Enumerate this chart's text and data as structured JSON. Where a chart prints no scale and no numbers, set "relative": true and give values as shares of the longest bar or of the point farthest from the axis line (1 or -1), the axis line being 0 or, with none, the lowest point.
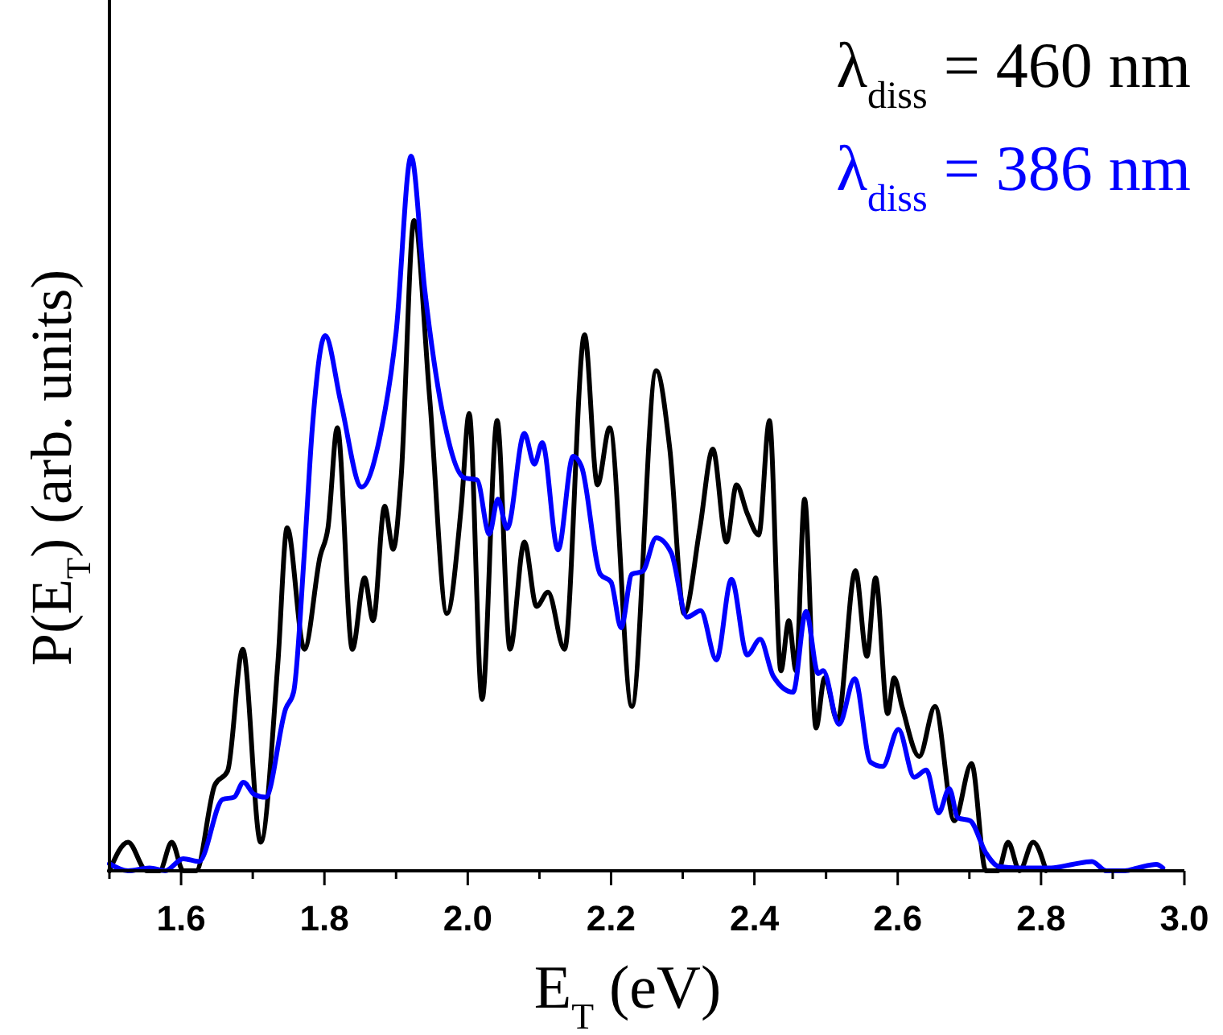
{
  "chart_data": {
    "type": "line",
    "relative": true,
    "xlabel": "E$_{T}$ (eV)",
    "ylabel": "P(E$_{T}$) (arb. units)",
    "legend": "top right",
    "xlim": [
      1.5,
      3.0
    ],
    "xticks": [
      {
        "value": 1.5,
        "label": null
      },
      1.6,
      {
        "value": 1.7,
        "label": null
      },
      1.8,
      {
        "value": 1.9,
        "label": null
      },
      {
        "value": 2.0,
        "label": "2.0"
      },
      {
        "value": 2.1,
        "label": null
      },
      2.2,
      {
        "value": 2.3,
        "label": null
      },
      2.4,
      {
        "value": 2.5,
        "label": null
      },
      2.6,
      {
        "value": 2.7,
        "label": null
      },
      2.8,
      {
        "value": 2.9,
        "label": null
      },
      {
        "value": 3.0,
        "label": "3.0"
      }
    ],
    "series": [
      {
        "name": "λ$_{diss}$ = 460 nm",
        "color": "#000000",
        "x": [
          1.5,
          1.526,
          1.552,
          1.57,
          1.587,
          1.603,
          1.621,
          1.647,
          1.665,
          1.686,
          1.711,
          1.735,
          1.748,
          1.772,
          1.794,
          1.805,
          1.818,
          1.839,
          1.856,
          1.868,
          1.884,
          1.896,
          1.907,
          1.925,
          1.947,
          1.971,
          1.991,
          2.002,
          2.02,
          2.041,
          2.059,
          2.079,
          2.096,
          2.112,
          2.135,
          2.163,
          2.181,
          2.198,
          2.229,
          2.263,
          2.282,
          2.302,
          2.324,
          2.342,
          2.361,
          2.375,
          2.39,
          2.406,
          2.421,
          2.437,
          2.448,
          2.458,
          2.47,
          2.486,
          2.498,
          2.516,
          2.541,
          2.557,
          2.569,
          2.586,
          2.595,
          2.606,
          2.63,
          2.652,
          2.679,
          2.703,
          2.723,
          2.74,
          2.754,
          2.77,
          2.789,
          2.807
        ],
        "values": [
          0,
          0.04,
          0,
          0,
          0.04,
          0,
          0,
          0.12,
          0.14,
          0.31,
          0.04,
          0.29,
          0.48,
          0.31,
          0.44,
          0.48,
          0.62,
          0.31,
          0.41,
          0.35,
          0.51,
          0.45,
          0.55,
          0.91,
          0.66,
          0.36,
          0.51,
          0.64,
          0.24,
          0.63,
          0.31,
          0.46,
          0.37,
          0.39,
          0.31,
          0.75,
          0.54,
          0.62,
          0.23,
          0.7,
          0.59,
          0.36,
          0.48,
          0.59,
          0.46,
          0.54,
          0.5,
          0.47,
          0.63,
          0.28,
          0.35,
          0.28,
          0.52,
          0.2,
          0.27,
          0.21,
          0.42,
          0.3,
          0.41,
          0.22,
          0.27,
          0.23,
          0.16,
          0.23,
          0.07,
          0.15,
          0,
          0,
          0.04,
          0,
          0.04,
          0
        ]
      },
      {
        "name": "λ$_{diss}$ = 386 nm",
        "color": "#0000ff",
        "x": [
          1.5,
          1.526,
          1.556,
          1.578,
          1.603,
          1.625,
          1.658,
          1.674,
          1.687,
          1.702,
          1.718,
          1.746,
          1.757,
          1.772,
          1.783,
          1.801,
          1.823,
          1.852,
          1.878,
          1.9,
          1.921,
          1.94,
          1.967,
          1.995,
          2.013,
          2.03,
          2.042,
          2.055,
          2.079,
          2.093,
          2.104,
          2.126,
          2.147,
          2.159,
          2.185,
          2.2,
          2.214,
          2.229,
          2.244,
          2.263,
          2.284,
          2.306,
          2.325,
          2.347,
          2.368,
          2.39,
          2.408,
          2.426,
          2.454,
          2.472,
          2.489,
          2.496,
          2.518,
          2.54,
          2.562,
          2.579,
          2.601,
          2.623,
          2.64,
          2.657,
          2.672,
          2.684,
          2.701,
          2.723,
          2.741,
          2.77,
          2.814,
          2.844,
          2.871,
          2.891,
          2.917,
          2.935,
          2.961,
          2.97
        ],
        "values": [
          0.01,
          0,
          0.004,
          0,
          0.017,
          0.013,
          0.1,
          0.103,
          0.124,
          0.107,
          0.103,
          0.227,
          0.25,
          0.445,
          0.618,
          0.749,
          0.655,
          0.537,
          0.61,
          0.753,
          1,
          0.813,
          0.63,
          0.55,
          0.547,
          0.471,
          0.52,
          0.479,
          0.612,
          0.569,
          0.599,
          0.449,
          0.58,
          0.565,
          0.415,
          0.404,
          0.34,
          0.415,
          0.419,
          0.466,
          0.445,
          0.355,
          0.364,
          0.295,
          0.408,
          0.302,
          0.324,
          0.273,
          0.25,
          0.363,
          0.276,
          0.28,
          0.205,
          0.269,
          0.152,
          0.146,
          0.198,
          0.131,
          0.141,
          0.081,
          0.115,
          0.074,
          0.07,
          0.025,
          0.006,
          0.004,
          0.004,
          0.009,
          0.013,
          0,
          0,
          0.004,
          0.009,
          0.004
        ]
      }
    ]
  }
}
